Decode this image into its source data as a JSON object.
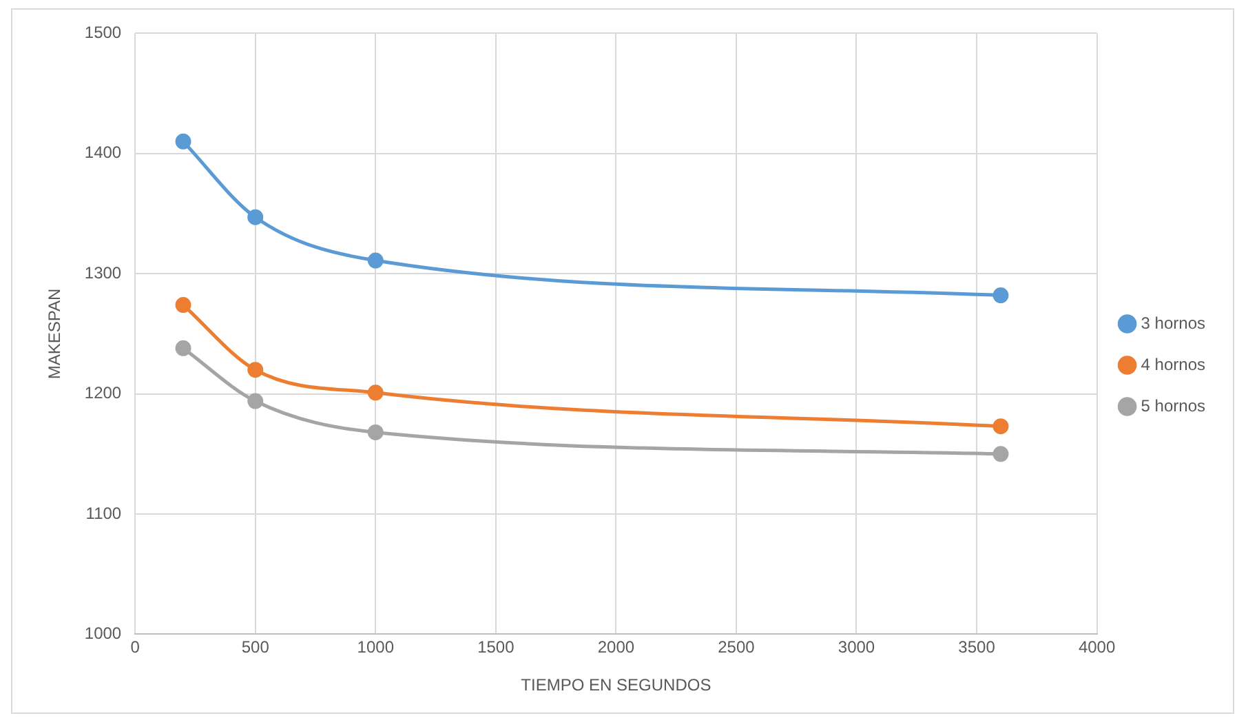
{
  "chart_data": {
    "type": "line",
    "xlabel": "TIEMPO EN SEGUNDOS",
    "ylabel": "MAKESPAN",
    "x": [
      200,
      500,
      1000,
      3600
    ],
    "series": [
      {
        "name": "3 hornos",
        "color": "#5b9bd5",
        "values": [
          1410,
          1347,
          1311,
          1282
        ]
      },
      {
        "name": "4 hornos",
        "color": "#ed7d31",
        "values": [
          1274,
          1220,
          1201,
          1173
        ]
      },
      {
        "name": "5 hornos",
        "color": "#a5a5a5",
        "values": [
          1238,
          1194,
          1168,
          1150
        ]
      }
    ],
    "xlim": [
      0,
      4000
    ],
    "xticks": [
      0,
      500,
      1000,
      1500,
      2000,
      2500,
      3000,
      3500,
      4000
    ],
    "ylim": [
      1000,
      1500
    ],
    "yticks": [
      1000,
      1100,
      1200,
      1300,
      1400,
      1500
    ],
    "grid": true,
    "legend": "right",
    "marker": "circle",
    "line_style": "solid"
  }
}
